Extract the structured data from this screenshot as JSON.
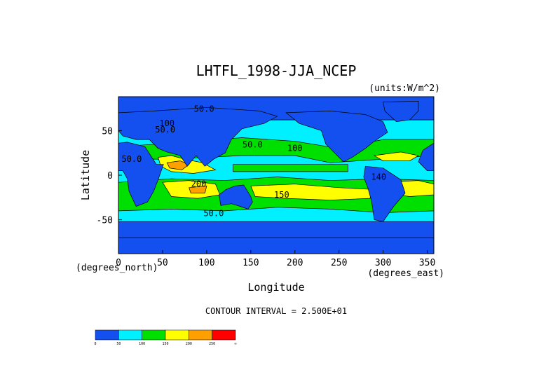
{
  "chart_data": {
    "type": "heatmap",
    "title": "LHTFL_1998-JJA_NCEP",
    "units_note": "(units:W/m^2)",
    "xlabel": "Longitude",
    "ylabel": "Latitude",
    "x_unit_note": "(degrees_east)",
    "y_unit_note": "(degrees_north)",
    "xlim": [
      0,
      357.5
    ],
    "ylim": [
      -88,
      88
    ],
    "x_ticks": [
      0,
      50,
      100,
      150,
      200,
      250,
      300,
      350
    ],
    "y_ticks": [
      -50,
      0,
      50
    ],
    "contour_interval_text": "CONTOUR INTERVAL = 2.500E+01",
    "contour_interval": 25,
    "color_levels": [
      0,
      50,
      100,
      150,
      200,
      250,
      300
    ],
    "colorbar_labels": [
      "0",
      "50",
      "100",
      "150",
      "200",
      "250",
      "∞"
    ],
    "level_colors": [
      "#1450f0",
      "#00f0ff",
      "#00e000",
      "#ffff00",
      "#ffa000",
      "#ff0000"
    ],
    "contour_labels": [
      {
        "text": "50.0",
        "lon": 97,
        "lat": 71
      },
      {
        "text": "100",
        "lon": 55,
        "lat": 55
      },
      {
        "text": "50.0",
        "lon": 53,
        "lat": 48
      },
      {
        "text": "100",
        "lon": 200,
        "lat": 27
      },
      {
        "text": "50.0",
        "lon": 152,
        "lat": 31
      },
      {
        "text": "50.0",
        "lon": 15,
        "lat": 15
      },
      {
        "text": "200",
        "lon": 91,
        "lat": -13
      },
      {
        "text": "150",
        "lon": 185,
        "lat": -25
      },
      {
        "text": "50.0",
        "lon": 108,
        "lat": -46
      },
      {
        "text": "140",
        "lon": 295,
        "lat": -5
      }
    ],
    "regions": [
      {
        "name": "arctic",
        "level": 0
      },
      {
        "name": "southern-ocean",
        "level": 0
      },
      {
        "name": "north-pacific-subtropics",
        "level": 2
      },
      {
        "name": "tropical-pacific",
        "level": 2
      },
      {
        "name": "south-pacific-trades",
        "level": 3
      },
      {
        "name": "south-indian-trades",
        "level": 3
      },
      {
        "name": "arabian-sea",
        "level": 4
      },
      {
        "name": "south-atlantic-trades",
        "level": 3
      },
      {
        "name": "north-atlantic",
        "level": 2
      },
      {
        "name": "continents",
        "level": 0
      }
    ]
  }
}
